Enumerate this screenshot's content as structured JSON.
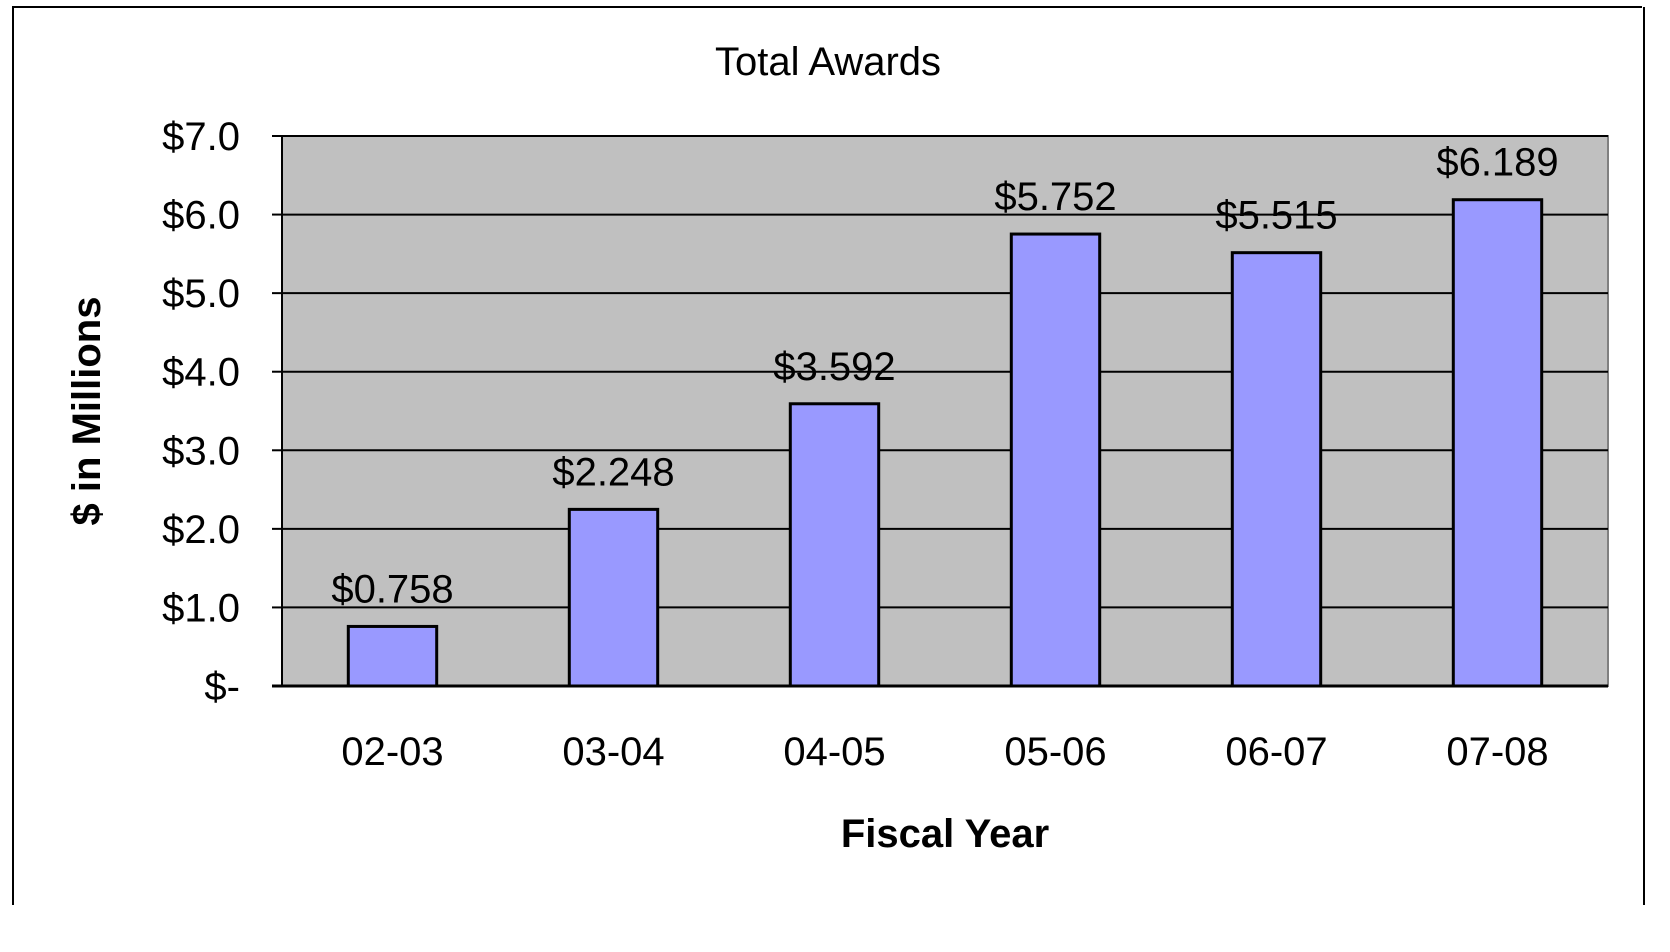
{
  "chart_data": {
    "type": "bar",
    "title": "Total Awards",
    "xlabel": "Fiscal Year",
    "ylabel": "$ in Millions",
    "categories": [
      "02-03",
      "03-04",
      "04-05",
      "05-06",
      "06-07",
      "07-08"
    ],
    "values": [
      0.758,
      2.248,
      3.592,
      5.752,
      5.515,
      6.189
    ],
    "data_labels": [
      "$0.758",
      "$2.248",
      "$3.592",
      "$5.752",
      "$5.515",
      "$6.189"
    ],
    "ylim": [
      0,
      7
    ],
    "yticks": [
      0,
      1,
      2,
      3,
      4,
      5,
      6,
      7
    ],
    "ytick_labels": [
      "$-",
      "$1.0",
      "$2.0",
      "$3.0",
      "$4.0",
      "$5.0",
      "$6.0",
      "$7.0"
    ],
    "grid": true,
    "legend": "none",
    "colors": {
      "bar_fill": "#9999ff",
      "bar_stroke": "#000000",
      "plot_background": "#c0c0c0",
      "gridline": "#000000",
      "page_background": "#ffffff"
    }
  }
}
